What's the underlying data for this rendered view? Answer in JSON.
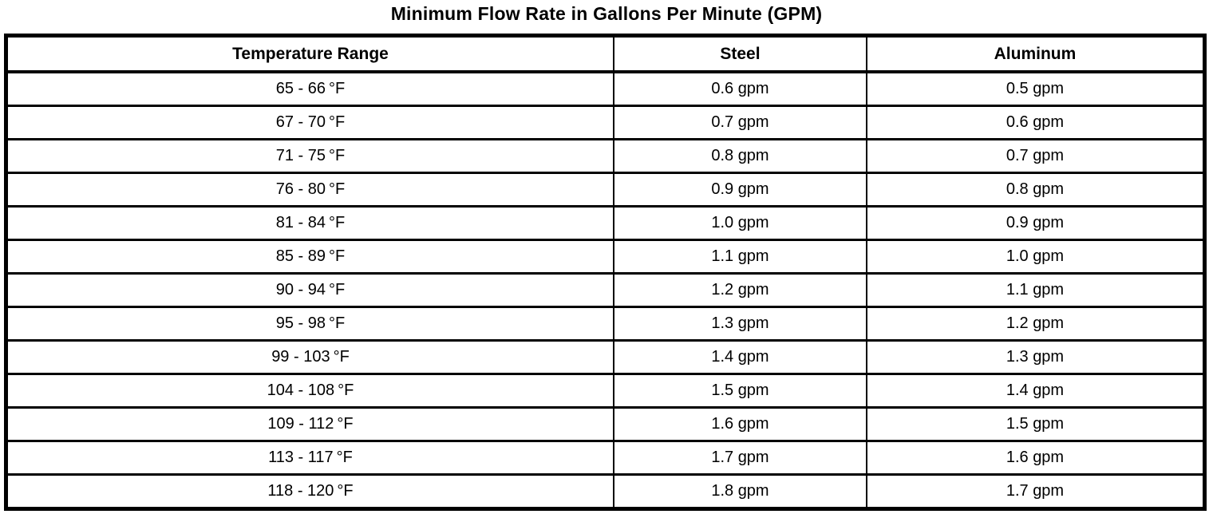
{
  "title": "Minimum Flow Rate in Gallons Per Minute (GPM)",
  "chart_data": {
    "type": "table",
    "title": "Minimum Flow Rate in Gallons Per Minute (GPM)",
    "columns": [
      "Temperature Range",
      "Steel",
      "Aluminum"
    ],
    "unit_temperature": "°F",
    "unit_flow": "gpm",
    "rows": [
      [
        "65 - 66 °F",
        "0.6 gpm",
        "0.5 gpm"
      ],
      [
        "67 - 70 °F",
        "0.7 gpm",
        "0.6 gpm"
      ],
      [
        "71 - 75 °F",
        "0.8 gpm",
        "0.7 gpm"
      ],
      [
        "76 - 80 °F",
        "0.9 gpm",
        "0.8 gpm"
      ],
      [
        "81 - 84 °F",
        "1.0 gpm",
        "0.9 gpm"
      ],
      [
        "85 - 89 °F",
        "1.1 gpm",
        "1.0 gpm"
      ],
      [
        "90 - 94 °F",
        "1.2 gpm",
        "1.1 gpm"
      ],
      [
        "95 - 98 °F",
        "1.3 gpm",
        "1.2 gpm"
      ],
      [
        "99 - 103 °F",
        "1.4 gpm",
        "1.3 gpm"
      ],
      [
        "104 - 108 °F",
        "1.5 gpm",
        "1.4 gpm"
      ],
      [
        "109 - 112 °F",
        "1.6 gpm",
        "1.5 gpm"
      ],
      [
        "113 - 117 °F",
        "1.7 gpm",
        "1.6 gpm"
      ],
      [
        "118 - 120 °F",
        "1.8 gpm",
        "1.7 gpm"
      ]
    ],
    "colors": {
      "border": "#000000",
      "text": "#000000",
      "background": "#ffffff"
    },
    "layout": {
      "grid": "full-borders",
      "header_row": true,
      "cell_alignment": "center"
    }
  }
}
